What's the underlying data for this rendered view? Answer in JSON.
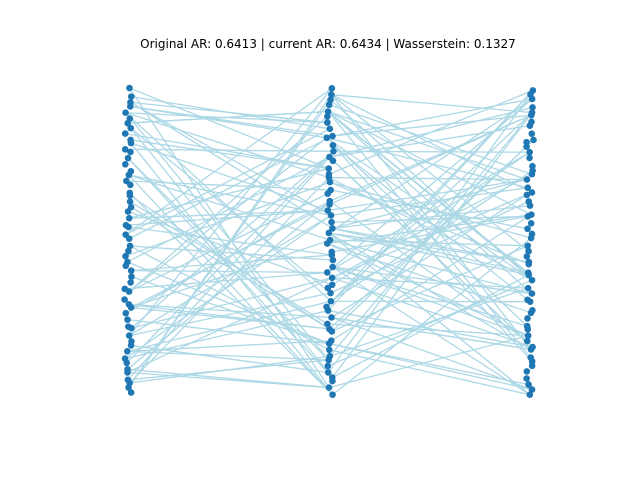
{
  "title": "Original AR: 0.6413 | current AR: 0.6434 | Wasserstein: 0.1327",
  "colors": {
    "node": "#1f77b4",
    "edge": "#add8e6",
    "background": "#ffffff"
  },
  "graph": {
    "layout": "three vertical columns of nodes (layered)",
    "columns": [
      {
        "name": "left",
        "node_count": 58
      },
      {
        "name": "middle",
        "node_count": 56
      },
      {
        "name": "right",
        "node_count": 58
      }
    ],
    "edge_count": 170
  }
}
